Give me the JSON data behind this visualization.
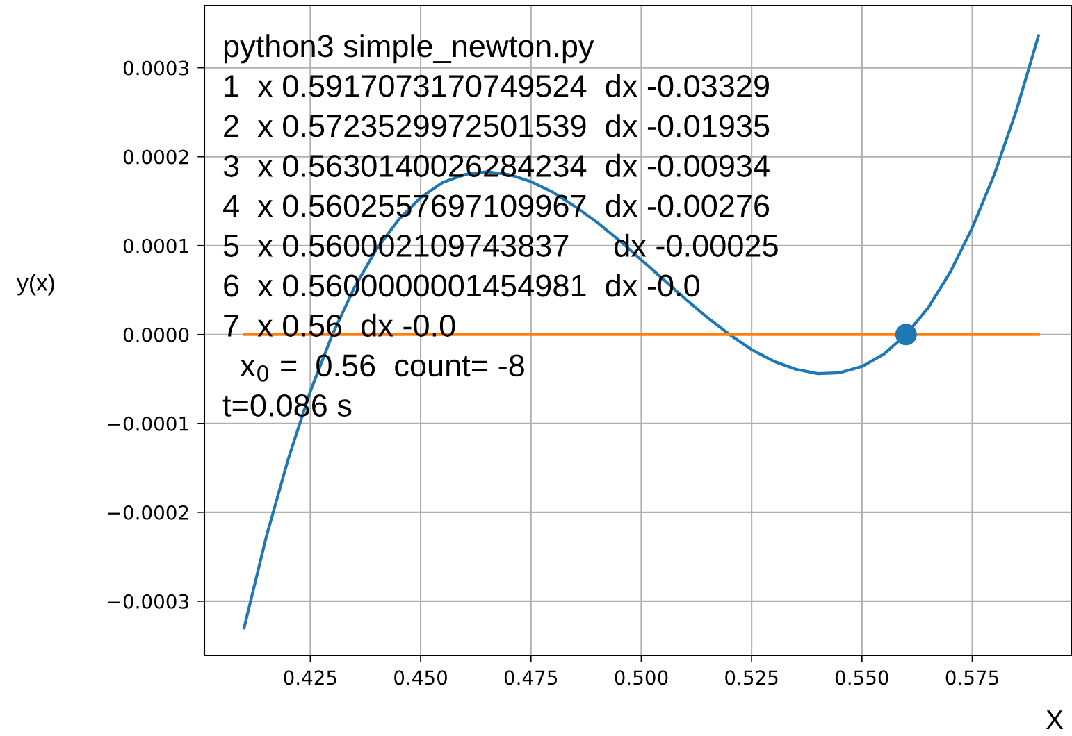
{
  "chart_data": {
    "type": "line",
    "xlabel": "X",
    "ylabel": "y(x)",
    "grid": true,
    "xlim": [
      0.401,
      0.5976
    ],
    "xticks": [
      0.425,
      {
        "value": 0.45,
        "label": "0.450"
      },
      0.475,
      {
        "value": 0.5,
        "label": "0.500"
      },
      0.525,
      {
        "value": 0.55,
        "label": "0.550"
      },
      0.575
    ],
    "ylim": [
      -0.000361,
      0.00037
    ],
    "yticks": [
      {
        "value": -0.0003,
        "label": "−0.0003"
      },
      {
        "value": -0.0002,
        "label": "−0.0002"
      },
      {
        "value": -0.0001,
        "label": "−0.0001"
      },
      {
        "value": 0,
        "label": "0.0000"
      },
      {
        "value": 0.0001,
        "label": "0.0001"
      },
      {
        "value": 0.0002,
        "label": "0.0002"
      },
      {
        "value": 0.0003,
        "label": "0.0003"
      }
    ],
    "series": [
      {
        "type": "line",
        "color": "#1f77b4",
        "x": [
          0.41,
          0.415,
          0.42,
          0.425,
          0.43,
          0.435,
          0.44,
          0.445,
          0.45,
          0.455,
          0.46,
          0.465,
          0.47,
          0.475,
          0.48,
          0.485,
          0.49,
          0.495,
          0.5,
          0.505,
          0.51,
          0.515,
          0.52,
          0.525,
          0.53,
          0.535,
          0.54,
          0.545,
          0.55,
          0.555,
          0.56,
          0.565,
          0.57,
          0.575,
          0.58,
          0.585,
          0.59
        ],
        "values": [
          -0.00033,
          -0.000228,
          -0.00014,
          -6.4e-05,
          0,
          5.3e-05,
          9.6e-05,
          0.000129,
          0.000154,
          0.000171,
          0.00018,
          0.000183,
          0.00018,
          0.000172,
          0.00016,
          0.000144,
          0.000126,
          0.000106,
          8.4e-05,
          6.2e-05,
          4e-05,
          1.9e-05,
          0,
          -1.7e-05,
          -3e-05,
          -3.9e-05,
          -4.4e-05,
          -4.3e-05,
          -3.6e-05,
          -2.2e-05,
          0,
          3e-05,
          7e-05,
          0.00012,
          0.00018,
          0.000252,
          0.000336
        ]
      },
      {
        "type": "line",
        "color": "#ff7f0e",
        "x": [
          0.41,
          0.59
        ],
        "values": [
          0,
          0
        ]
      },
      {
        "type": "scatter",
        "color": "#1f77b4",
        "marker": "circle",
        "x": [
          0.56
        ],
        "values": [
          0
        ]
      }
    ],
    "annotations": [
      "python3 simple_newton.py",
      "1  x 0.5917073170749524  dx -0.03329",
      "2  x 0.5723529972501539  dx -0.01935",
      "3  x 0.5630140026284234  dx -0.00934",
      "4  x 0.5602557697109967  dx -0.00276",
      "5  x 0.560002109743837     dx -0.00025",
      "6  x 0.5600000001454981  dx -0.0",
      "7  x 0.56  dx -0.0",
      "  x$_{0}$ =  0.56  count= -8",
      "t=0.086 s"
    ]
  }
}
